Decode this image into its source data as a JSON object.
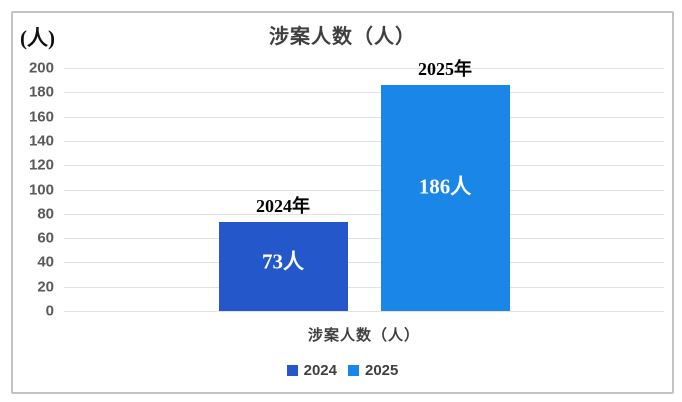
{
  "chart_data": {
    "type": "bar",
    "title": "涉案人数（人）",
    "y_unit_label": "(人)",
    "xlabel": "涉案人数（人）",
    "categories": [
      "涉案人数（人）"
    ],
    "series": [
      {
        "name": "2024",
        "bar_label": "2024年",
        "value": 73,
        "value_label": "73人",
        "color": "#2457c9"
      },
      {
        "name": "2025",
        "bar_label": "2025年",
        "value": 186,
        "value_label": "186人",
        "color": "#1a86e8"
      }
    ],
    "ylim": [
      0,
      200
    ],
    "ytick_step": 20,
    "yticks": [
      200,
      180,
      160,
      140,
      120,
      100,
      80,
      60,
      40,
      20,
      0
    ],
    "grid": true,
    "legend_position": "bottom",
    "colors": {
      "grid": "#e2e2e2",
      "panel_border": "#c3c3c3",
      "title_text": "#3f3f3f",
      "tick_text": "#595959",
      "bar_value_text": "#ffffff"
    }
  }
}
